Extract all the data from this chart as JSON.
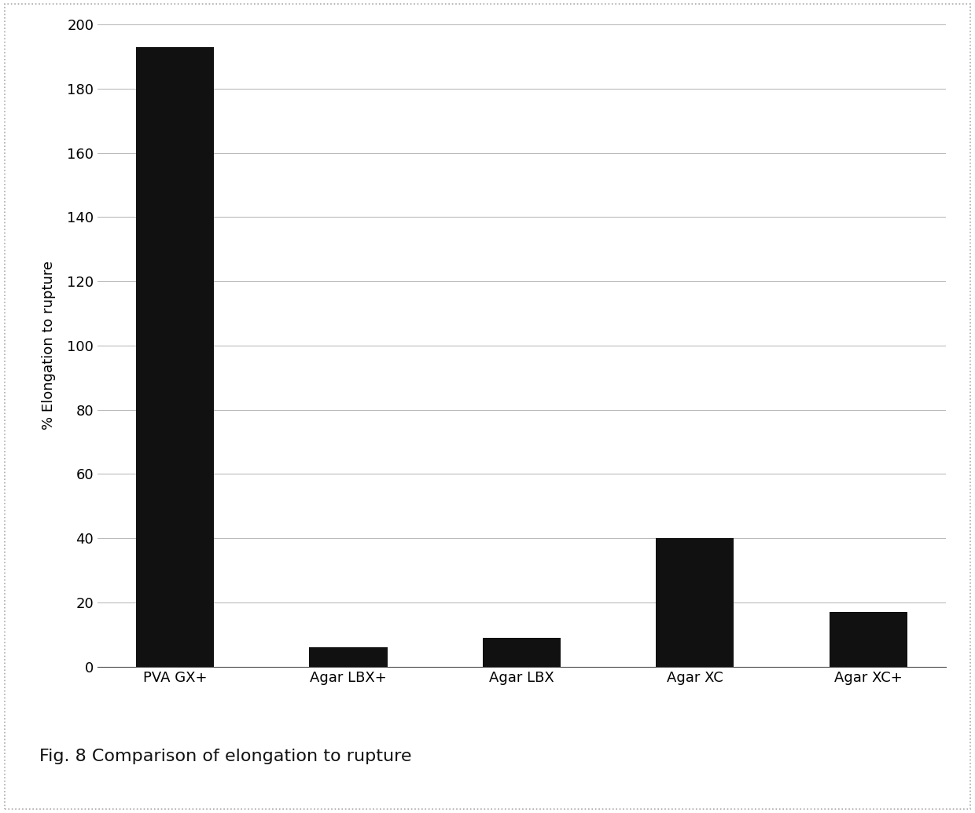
{
  "categories": [
    "PVA GX+",
    "Agar LBX+",
    "Agar LBX",
    "Agar XC",
    "Agar XC+"
  ],
  "values": [
    193,
    6,
    9,
    40,
    17
  ],
  "bar_color": "#111111",
  "ylabel": "% Elongation to rupture",
  "ylim": [
    0,
    200
  ],
  "yticks": [
    0,
    20,
    40,
    60,
    80,
    100,
    120,
    140,
    160,
    180,
    200
  ],
  "caption": "Fig. 8 Comparison of elongation to rupture",
  "background_color": "#ffffff",
  "grid_color": "#bbbbbb",
  "bar_width": 0.45,
  "axis_fontsize": 13,
  "tick_fontsize": 13,
  "caption_fontsize": 16,
  "outer_border_color": "#aaaaaa"
}
